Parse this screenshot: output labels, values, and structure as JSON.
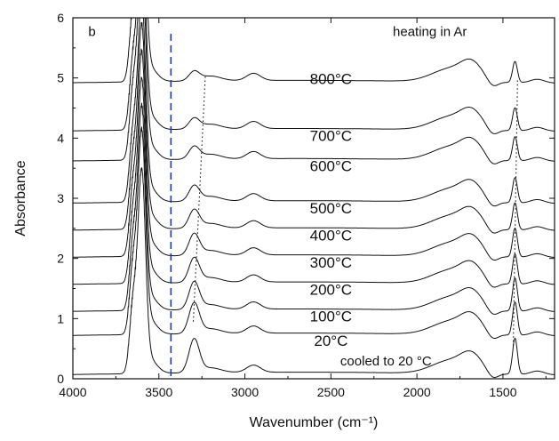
{
  "chart_data": {
    "type": "line",
    "panel_label": "b",
    "title": "heating in Ar",
    "xlabel": "Wavenumber (cm⁻¹)",
    "ylabel": "Absorbance",
    "xlim": [
      4000,
      1200
    ],
    "ylim": [
      0,
      6
    ],
    "x_ticks": [
      4000,
      3500,
      3000,
      2500,
      2000,
      1500
    ],
    "y_ticks": [
      0,
      1,
      2,
      3,
      4,
      5,
      6
    ],
    "vertical_reference_line": {
      "x": 3430,
      "style": "dashed",
      "color": "#2233cc"
    },
    "series": [
      {
        "name": "cooled to 20 °C",
        "offset": 0.05,
        "peak_3300": 0.55,
        "peak_1430": 0.6
      },
      {
        "name": "20°C",
        "offset": 0.7,
        "peak_3300": 0.5,
        "peak_1430": 0.55
      },
      {
        "name": "100°C",
        "offset": 1.1,
        "peak_3300": 0.45,
        "peak_1430": 0.55
      },
      {
        "name": "200°C",
        "offset": 1.55,
        "peak_3300": 0.4,
        "peak_1430": 0.5
      },
      {
        "name": "300°C",
        "offset": 2.0,
        "peak_3300": 0.35,
        "peak_1430": 0.48
      },
      {
        "name": "400°C",
        "offset": 2.45,
        "peak_3300": 0.3,
        "peak_1430": 0.45
      },
      {
        "name": "500°C",
        "offset": 2.9,
        "peak_3300": 0.25,
        "peak_1430": 0.42
      },
      {
        "name": "600°C",
        "offset": 3.6,
        "peak_3300": 0.2,
        "peak_1430": 0.4
      },
      {
        "name": "700°C",
        "offset": 4.1,
        "peak_3300": 0.17,
        "peak_1430": 0.38
      },
      {
        "name": "800°C",
        "offset": 4.9,
        "peak_3300": 0.15,
        "peak_1430": 0.35
      }
    ],
    "dotted_guides": [
      {
        "from": [
          3300,
          0.95
        ],
        "to": [
          3230,
          5.05
        ]
      },
      {
        "from": [
          1440,
          0.55
        ],
        "to": [
          1415,
          5.0
        ]
      }
    ],
    "colors": {
      "curves": "#111111",
      "dashed_line": "#2233cc"
    }
  }
}
